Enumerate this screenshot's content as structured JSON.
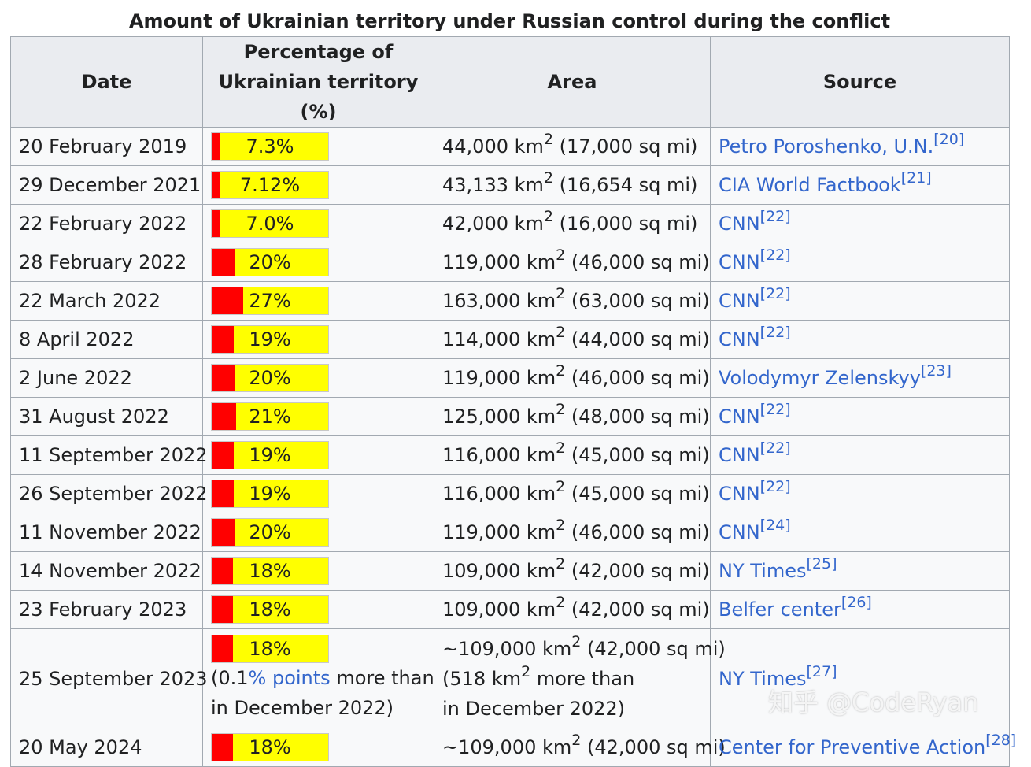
{
  "caption": "Amount of Ukrainian territory under Russian control during the conflict",
  "headers": {
    "date": "Date",
    "pct_line1": "Percentage of",
    "pct_line2": "Ukrainian territory (%)",
    "area": "Area",
    "source": "Source"
  },
  "area_unit": "km",
  "area_exp": "2",
  "colors": {
    "controlled": "#ff0000",
    "remaining": "#ffff00",
    "link": "#3366cc",
    "header_bg": "#eaecf0",
    "cell_bg": "#f8f9fa",
    "border": "#a2a9b1"
  },
  "rows": [
    {
      "date": "20 February 2019",
      "pct": "7.3%",
      "pct_value": 7.3,
      "prefix": "",
      "km": "44,000",
      "sqmi": "(17,000 sq mi)",
      "source": "Petro Poroshenko, U.N.",
      "ref": "[20]"
    },
    {
      "date": "29 December 2021",
      "pct": "7.12%",
      "pct_value": 7.12,
      "prefix": "",
      "km": "43,133",
      "sqmi": "(16,654 sq mi)",
      "source": "CIA World Factbook",
      "ref": "[21]"
    },
    {
      "date": "22 February 2022",
      "pct": "7.0%",
      "pct_value": 7.0,
      "prefix": "",
      "km": "42,000",
      "sqmi": "(16,000 sq mi)",
      "source": "CNN",
      "ref": "[22]"
    },
    {
      "date": "28 February 2022",
      "pct": "20%",
      "pct_value": 20,
      "prefix": "",
      "km": "119,000",
      "sqmi": "(46,000 sq mi)",
      "source": "CNN",
      "ref": "[22]"
    },
    {
      "date": "22 March 2022",
      "pct": "27%",
      "pct_value": 27,
      "prefix": "",
      "km": "163,000",
      "sqmi": "(63,000 sq mi)",
      "source": "CNN",
      "ref": "[22]"
    },
    {
      "date": "8 April 2022",
      "pct": "19%",
      "pct_value": 19,
      "prefix": "",
      "km": "114,000",
      "sqmi": "(44,000 sq mi)",
      "source": "CNN",
      "ref": "[22]"
    },
    {
      "date": "2 June 2022",
      "pct": "20%",
      "pct_value": 20,
      "prefix": "",
      "km": "119,000",
      "sqmi": "(46,000 sq mi)",
      "source": "Volodymyr Zelenskyy",
      "ref": "[23]"
    },
    {
      "date": "31 August 2022",
      "pct": "21%",
      "pct_value": 21,
      "prefix": "",
      "km": "125,000",
      "sqmi": "(48,000 sq mi)",
      "source": "CNN",
      "ref": "[22]"
    },
    {
      "date": "11 September 2022",
      "pct": "19%",
      "pct_value": 19,
      "prefix": "",
      "km": "116,000",
      "sqmi": "(45,000 sq mi)",
      "source": "CNN",
      "ref": "[22]"
    },
    {
      "date": "26 September 2022",
      "pct": "19%",
      "pct_value": 19,
      "prefix": "",
      "km": "116,000",
      "sqmi": "(45,000 sq mi)",
      "source": "CNN",
      "ref": "[22]"
    },
    {
      "date": "11 November 2022",
      "pct": "20%",
      "pct_value": 20,
      "prefix": "",
      "km": "119,000",
      "sqmi": "(46,000 sq mi)",
      "source": "CNN",
      "ref": "[24]"
    },
    {
      "date": "14 November 2022",
      "pct": "18%",
      "pct_value": 18,
      "prefix": "",
      "km": "109,000",
      "sqmi": "(42,000 sq mi)",
      "source": "NY Times",
      "ref": "[25]"
    },
    {
      "date": "23 February 2023",
      "pct": "18%",
      "pct_value": 18,
      "prefix": "",
      "km": "109,000",
      "sqmi": "(42,000 sq mi)",
      "source": "Belfer center",
      "ref": "[26]"
    },
    {
      "date": "25 September 2023",
      "pct": "18%",
      "pct_value": 18,
      "prefix": "~",
      "km": "109,000",
      "sqmi": "(42,000 sq mi)",
      "source": "NY Times",
      "ref": "[27]",
      "pct_note": {
        "before": "(0.1",
        "link": "% points",
        "after": " more than",
        "line2": "in December 2022)"
      },
      "area_note": {
        "before": "(518 ",
        "unit": "km",
        "exp": "2",
        "after": " more than",
        "line2": "in December 2022)"
      }
    },
    {
      "date": "20 May 2024",
      "pct": "18%",
      "pct_value": 18,
      "prefix": "~",
      "km": "109,000",
      "sqmi": "(42,000 sq mi)",
      "source": "Center for Preventive Action",
      "ref": "[28]"
    }
  ],
  "watermark": "知乎 @CodeRyan"
}
